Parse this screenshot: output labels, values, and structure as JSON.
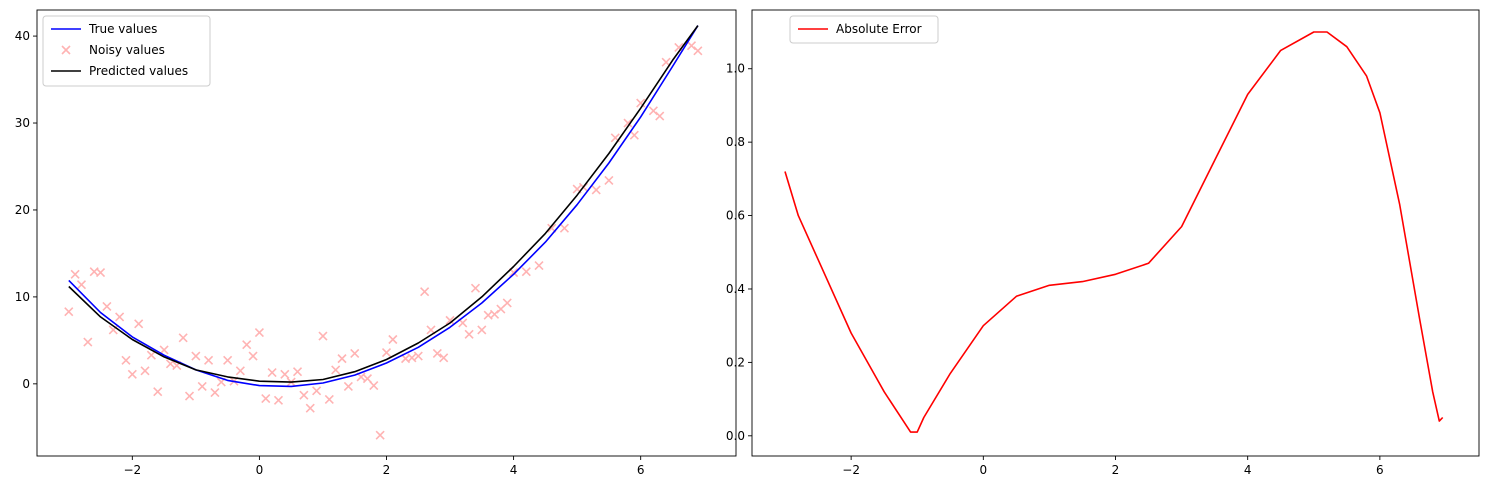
{
  "chart_data": [
    {
      "type": "line",
      "grid": false,
      "legend_position": "top-left",
      "xlim": [
        -3.5,
        7.5
      ],
      "ylim": [
        -8.3,
        43.0
      ],
      "xticks": [
        -2,
        0,
        2,
        4,
        6
      ],
      "yticks": [
        0,
        10,
        20,
        30,
        40
      ],
      "xtick_labels": [
        "−2",
        "0",
        "2",
        "4",
        "6"
      ],
      "ytick_labels": [
        "0",
        "10",
        "20",
        "30",
        "40"
      ],
      "legend": [
        "True values",
        "Noisy values",
        "Predicted values"
      ],
      "series": [
        {
          "name": "True values",
          "kind": "line",
          "color": "#0000ff",
          "x": [
            -3,
            -2.5,
            -2,
            -1.5,
            -1,
            -0.5,
            0,
            0.5,
            1,
            1.5,
            2,
            2.5,
            3,
            3.5,
            4,
            4.5,
            5,
            5.5,
            6,
            6.5,
            6.9
          ],
          "y": [
            11.9,
            8.2,
            5.4,
            3.3,
            1.6,
            0.4,
            -0.2,
            -0.3,
            0.1,
            1.0,
            2.4,
            4.2,
            6.5,
            9.3,
            12.6,
            16.3,
            20.6,
            25.4,
            30.7,
            36.5,
            41.2
          ]
        },
        {
          "name": "Noisy values",
          "kind": "scatter",
          "color": "#ffb3b3",
          "marker": "x",
          "x": [
            -3.0,
            -2.9,
            -2.8,
            -2.7,
            -2.6,
            -2.5,
            -2.4,
            -2.3,
            -2.2,
            -2.1,
            -2.0,
            -1.9,
            -1.8,
            -1.7,
            -1.6,
            -1.5,
            -1.4,
            -1.3,
            -1.2,
            -1.1,
            -1.0,
            -0.9,
            -0.8,
            -0.7,
            -0.6,
            -0.5,
            -0.4,
            -0.3,
            -0.2,
            -0.1,
            0.0,
            0.1,
            0.2,
            0.3,
            0.4,
            0.5,
            0.6,
            0.7,
            0.8,
            0.9,
            1.0,
            1.1,
            1.2,
            1.3,
            1.4,
            1.5,
            1.6,
            1.7,
            1.8,
            1.9,
            2.0,
            2.1,
            2.3,
            2.4,
            2.5,
            2.6,
            2.7,
            2.8,
            2.9,
            3.0,
            3.2,
            3.3,
            3.4,
            3.5,
            3.6,
            3.7,
            3.8,
            3.9,
            4.0,
            4.2,
            4.4,
            4.6,
            4.8,
            5.0,
            5.1,
            5.3,
            5.5,
            5.6,
            5.8,
            5.9,
            6.0,
            6.2,
            6.3,
            6.4,
            6.6,
            6.8,
            6.9
          ],
          "y": [
            8.3,
            12.6,
            11.4,
            4.8,
            12.9,
            12.8,
            8.9,
            6.2,
            7.7,
            2.7,
            1.1,
            6.9,
            1.5,
            3.3,
            -0.9,
            3.9,
            2.3,
            2.1,
            5.3,
            -1.4,
            3.2,
            -0.3,
            2.7,
            -1.0,
            0.2,
            2.7,
            0.3,
            1.5,
            4.5,
            3.2,
            5.9,
            -1.7,
            1.3,
            -1.9,
            1.1,
            0.2,
            1.4,
            -1.3,
            -2.8,
            -0.8,
            5.5,
            -1.8,
            1.6,
            2.9,
            -0.3,
            3.5,
            0.8,
            0.6,
            -0.2,
            -5.9,
            3.6,
            5.1,
            2.9,
            3.0,
            3.2,
            10.6,
            6.2,
            3.5,
            3.0,
            7.3,
            7.0,
            5.7,
            11.0,
            6.2,
            7.9,
            8.0,
            8.6,
            9.3,
            12.8,
            12.9,
            13.6,
            17.9,
            17.9,
            22.4,
            22.6,
            22.3,
            23.4,
            28.3,
            30.0,
            28.6,
            32.3,
            31.4,
            30.8,
            37.0,
            38.7,
            38.9,
            38.3
          ]
        },
        {
          "name": "Predicted values",
          "kind": "line",
          "color": "#000000",
          "x": [
            -3,
            -2.5,
            -2,
            -1.5,
            -1,
            -0.5,
            0,
            0.5,
            1,
            1.5,
            2,
            2.5,
            3,
            3.5,
            4,
            4.5,
            5,
            5.5,
            6,
            6.5,
            6.9
          ],
          "y": [
            11.2,
            7.7,
            5.1,
            3.1,
            1.6,
            0.8,
            0.3,
            0.2,
            0.5,
            1.4,
            2.8,
            4.7,
            7.0,
            10.0,
            13.5,
            17.3,
            21.7,
            26.5,
            31.7,
            37.2,
            41.2
          ]
        }
      ]
    },
    {
      "type": "line",
      "grid": false,
      "legend_position": "top-left",
      "xlim": [
        -3.5,
        7.5
      ],
      "ylim": [
        -0.055,
        1.16
      ],
      "xticks": [
        -2,
        0,
        2,
        4,
        6
      ],
      "yticks": [
        0.0,
        0.2,
        0.4,
        0.6,
        0.8,
        1.0
      ],
      "xtick_labels": [
        "−2",
        "0",
        "2",
        "4",
        "6"
      ],
      "ytick_labels": [
        "0.0",
        "0.2",
        "0.4",
        "0.6",
        "0.8",
        "1.0"
      ],
      "legend": [
        "Absolute Error"
      ],
      "series": [
        {
          "name": "Absolute Error",
          "kind": "line",
          "color": "#ff0000",
          "x": [
            -3.0,
            -2.8,
            -2.5,
            -2.0,
            -1.5,
            -1.1,
            -1.0,
            -0.9,
            -0.5,
            0.0,
            0.5,
            1.0,
            1.5,
            2.0,
            2.5,
            3.0,
            3.5,
            4.0,
            4.5,
            5.0,
            5.2,
            5.5,
            5.8,
            6.0,
            6.3,
            6.6,
            6.8,
            6.9,
            6.95
          ],
          "y": [
            0.72,
            0.6,
            0.48,
            0.28,
            0.12,
            0.01,
            0.01,
            0.05,
            0.17,
            0.3,
            0.38,
            0.41,
            0.42,
            0.44,
            0.47,
            0.57,
            0.75,
            0.93,
            1.05,
            1.1,
            1.1,
            1.06,
            0.98,
            0.88,
            0.63,
            0.32,
            0.12,
            0.04,
            0.05
          ]
        }
      ]
    }
  ]
}
